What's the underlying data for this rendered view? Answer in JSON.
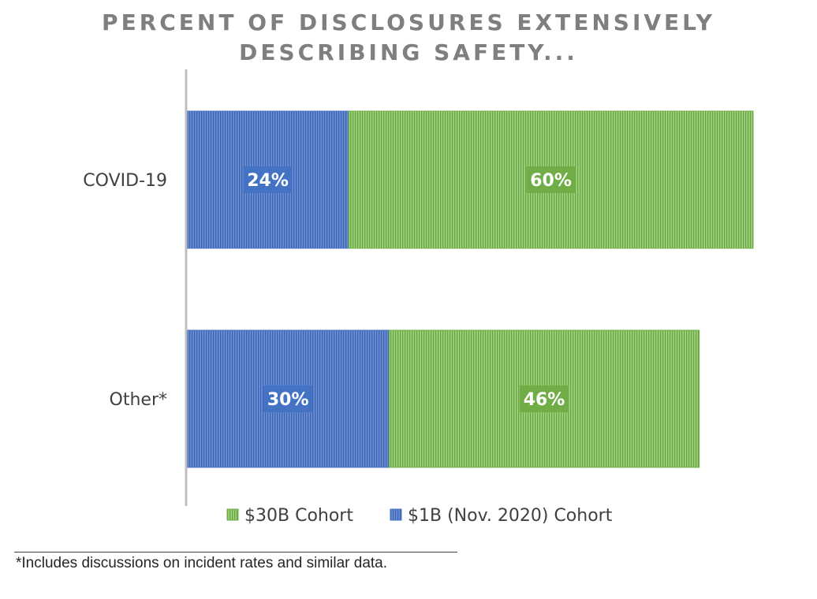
{
  "chart_data": {
    "type": "bar",
    "orientation": "horizontal",
    "stacked": true,
    "title_lines": [
      "PERCENT OF DISCLOSURES EXTENSIVELY",
      "DESCRIBING SAFETY..."
    ],
    "categories": [
      "COVID-19",
      "Other*"
    ],
    "series": [
      {
        "name": "$1B (Nov. 2020) Cohort",
        "values": [
          24,
          30
        ],
        "labels": [
          "24%",
          "30%"
        ],
        "color": "#4472c4"
      },
      {
        "name": "$30B Cohort",
        "values": [
          60,
          46
        ],
        "labels": [
          "60%",
          "46%"
        ],
        "color": "#70ad47"
      }
    ],
    "legend": {
      "position": "bottom",
      "items": [
        {
          "name": "$30B Cohort",
          "color": "#70ad47"
        },
        {
          "name": "$1B (Nov. 2020) Cohort",
          "color": "#4472c4"
        }
      ]
    },
    "grid": false,
    "xaxis_visible": false
  },
  "footnote": "*Includes discussions on incident rates and similar data."
}
